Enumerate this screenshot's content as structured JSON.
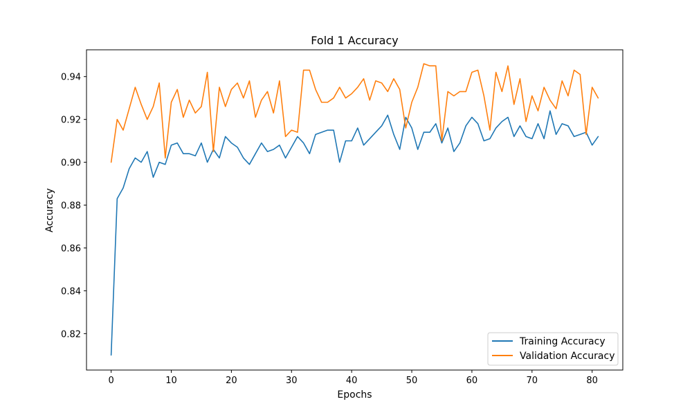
{
  "chart_data": {
    "type": "line",
    "title": "Fold 1 Accuracy",
    "xlabel": "Epochs",
    "ylabel": "Accuracy",
    "xlim": [
      -4.1,
      85.1
    ],
    "ylim": [
      0.803,
      0.9525
    ],
    "xticks": [
      0,
      10,
      20,
      30,
      40,
      50,
      60,
      70,
      80
    ],
    "xtick_labels": [
      "0",
      "10",
      "20",
      "30",
      "40",
      "50",
      "60",
      "70",
      "80"
    ],
    "yticks": [
      0.82,
      0.84,
      0.86,
      0.88,
      0.9,
      0.92,
      0.94
    ],
    "ytick_labels": [
      "0.82",
      "0.84",
      "0.86",
      "0.88",
      "0.90",
      "0.92",
      "0.94"
    ],
    "grid": false,
    "legend_position": "lower-right",
    "series": [
      {
        "name": "Training Accuracy",
        "color": "#1f77b4",
        "values": [
          0.81,
          0.883,
          0.888,
          0.897,
          0.902,
          0.9,
          0.905,
          0.893,
          0.9,
          0.899,
          0.908,
          0.909,
          0.904,
          0.904,
          0.903,
          0.909,
          0.9,
          0.906,
          0.902,
          0.912,
          0.909,
          0.907,
          0.902,
          0.899,
          0.904,
          0.909,
          0.905,
          0.906,
          0.908,
          0.902,
          0.907,
          0.912,
          0.909,
          0.904,
          0.913,
          0.914,
          0.915,
          0.915,
          0.9,
          0.91,
          0.91,
          0.916,
          0.908,
          0.911,
          0.914,
          0.917,
          0.922,
          0.913,
          0.906,
          0.921,
          0.916,
          0.906,
          0.914,
          0.914,
          0.918,
          0.909,
          0.916,
          0.905,
          0.909,
          0.917,
          0.921,
          0.918,
          0.91,
          0.911,
          0.916,
          0.919,
          0.921,
          0.912,
          0.917,
          0.912,
          0.911,
          0.918,
          0.911,
          0.924,
          0.913,
          0.918,
          0.917,
          0.912,
          0.913,
          0.914,
          0.908,
          0.912
        ]
      },
      {
        "name": "Validation Accuracy",
        "color": "#ff7f0e",
        "values": [
          0.9,
          0.92,
          0.915,
          0.925,
          0.935,
          0.927,
          0.92,
          0.926,
          0.937,
          0.902,
          0.928,
          0.934,
          0.921,
          0.929,
          0.923,
          0.926,
          0.942,
          0.905,
          0.935,
          0.926,
          0.934,
          0.937,
          0.93,
          0.938,
          0.921,
          0.929,
          0.933,
          0.923,
          0.938,
          0.912,
          0.915,
          0.914,
          0.943,
          0.943,
          0.934,
          0.928,
          0.928,
          0.93,
          0.935,
          0.93,
          0.932,
          0.935,
          0.939,
          0.929,
          0.938,
          0.937,
          0.933,
          0.939,
          0.934,
          0.916,
          0.928,
          0.935,
          0.946,
          0.945,
          0.945,
          0.91,
          0.933,
          0.931,
          0.933,
          0.933,
          0.942,
          0.943,
          0.931,
          0.915,
          0.942,
          0.933,
          0.945,
          0.927,
          0.939,
          0.919,
          0.931,
          0.924,
          0.935,
          0.929,
          0.925,
          0.938,
          0.931,
          0.943,
          0.941,
          0.913,
          0.935,
          0.93
        ]
      }
    ]
  }
}
